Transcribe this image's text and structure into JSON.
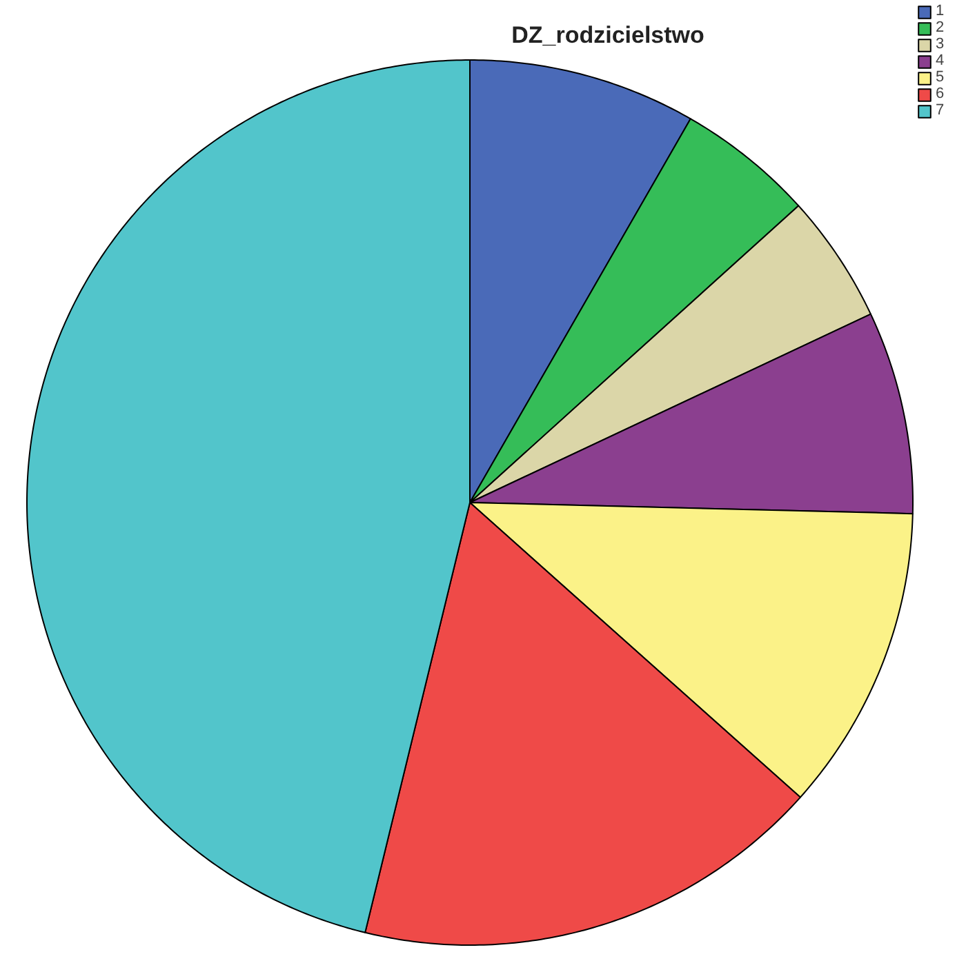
{
  "chart_data": {
    "type": "pie",
    "title": "DZ_rodzicielstwo",
    "categories": [
      "1",
      "2",
      "3",
      "4",
      "5",
      "6",
      "7"
    ],
    "values": [
      8.3,
      5.0,
      4.7,
      7.4,
      11.2,
      17.2,
      46.2
    ],
    "colors": [
      "#4a6ab8",
      "#35bd58",
      "#dbd6a8",
      "#8b3f8f",
      "#fbf288",
      "#ef4a48",
      "#52c5cb"
    ],
    "legend": "top right"
  }
}
